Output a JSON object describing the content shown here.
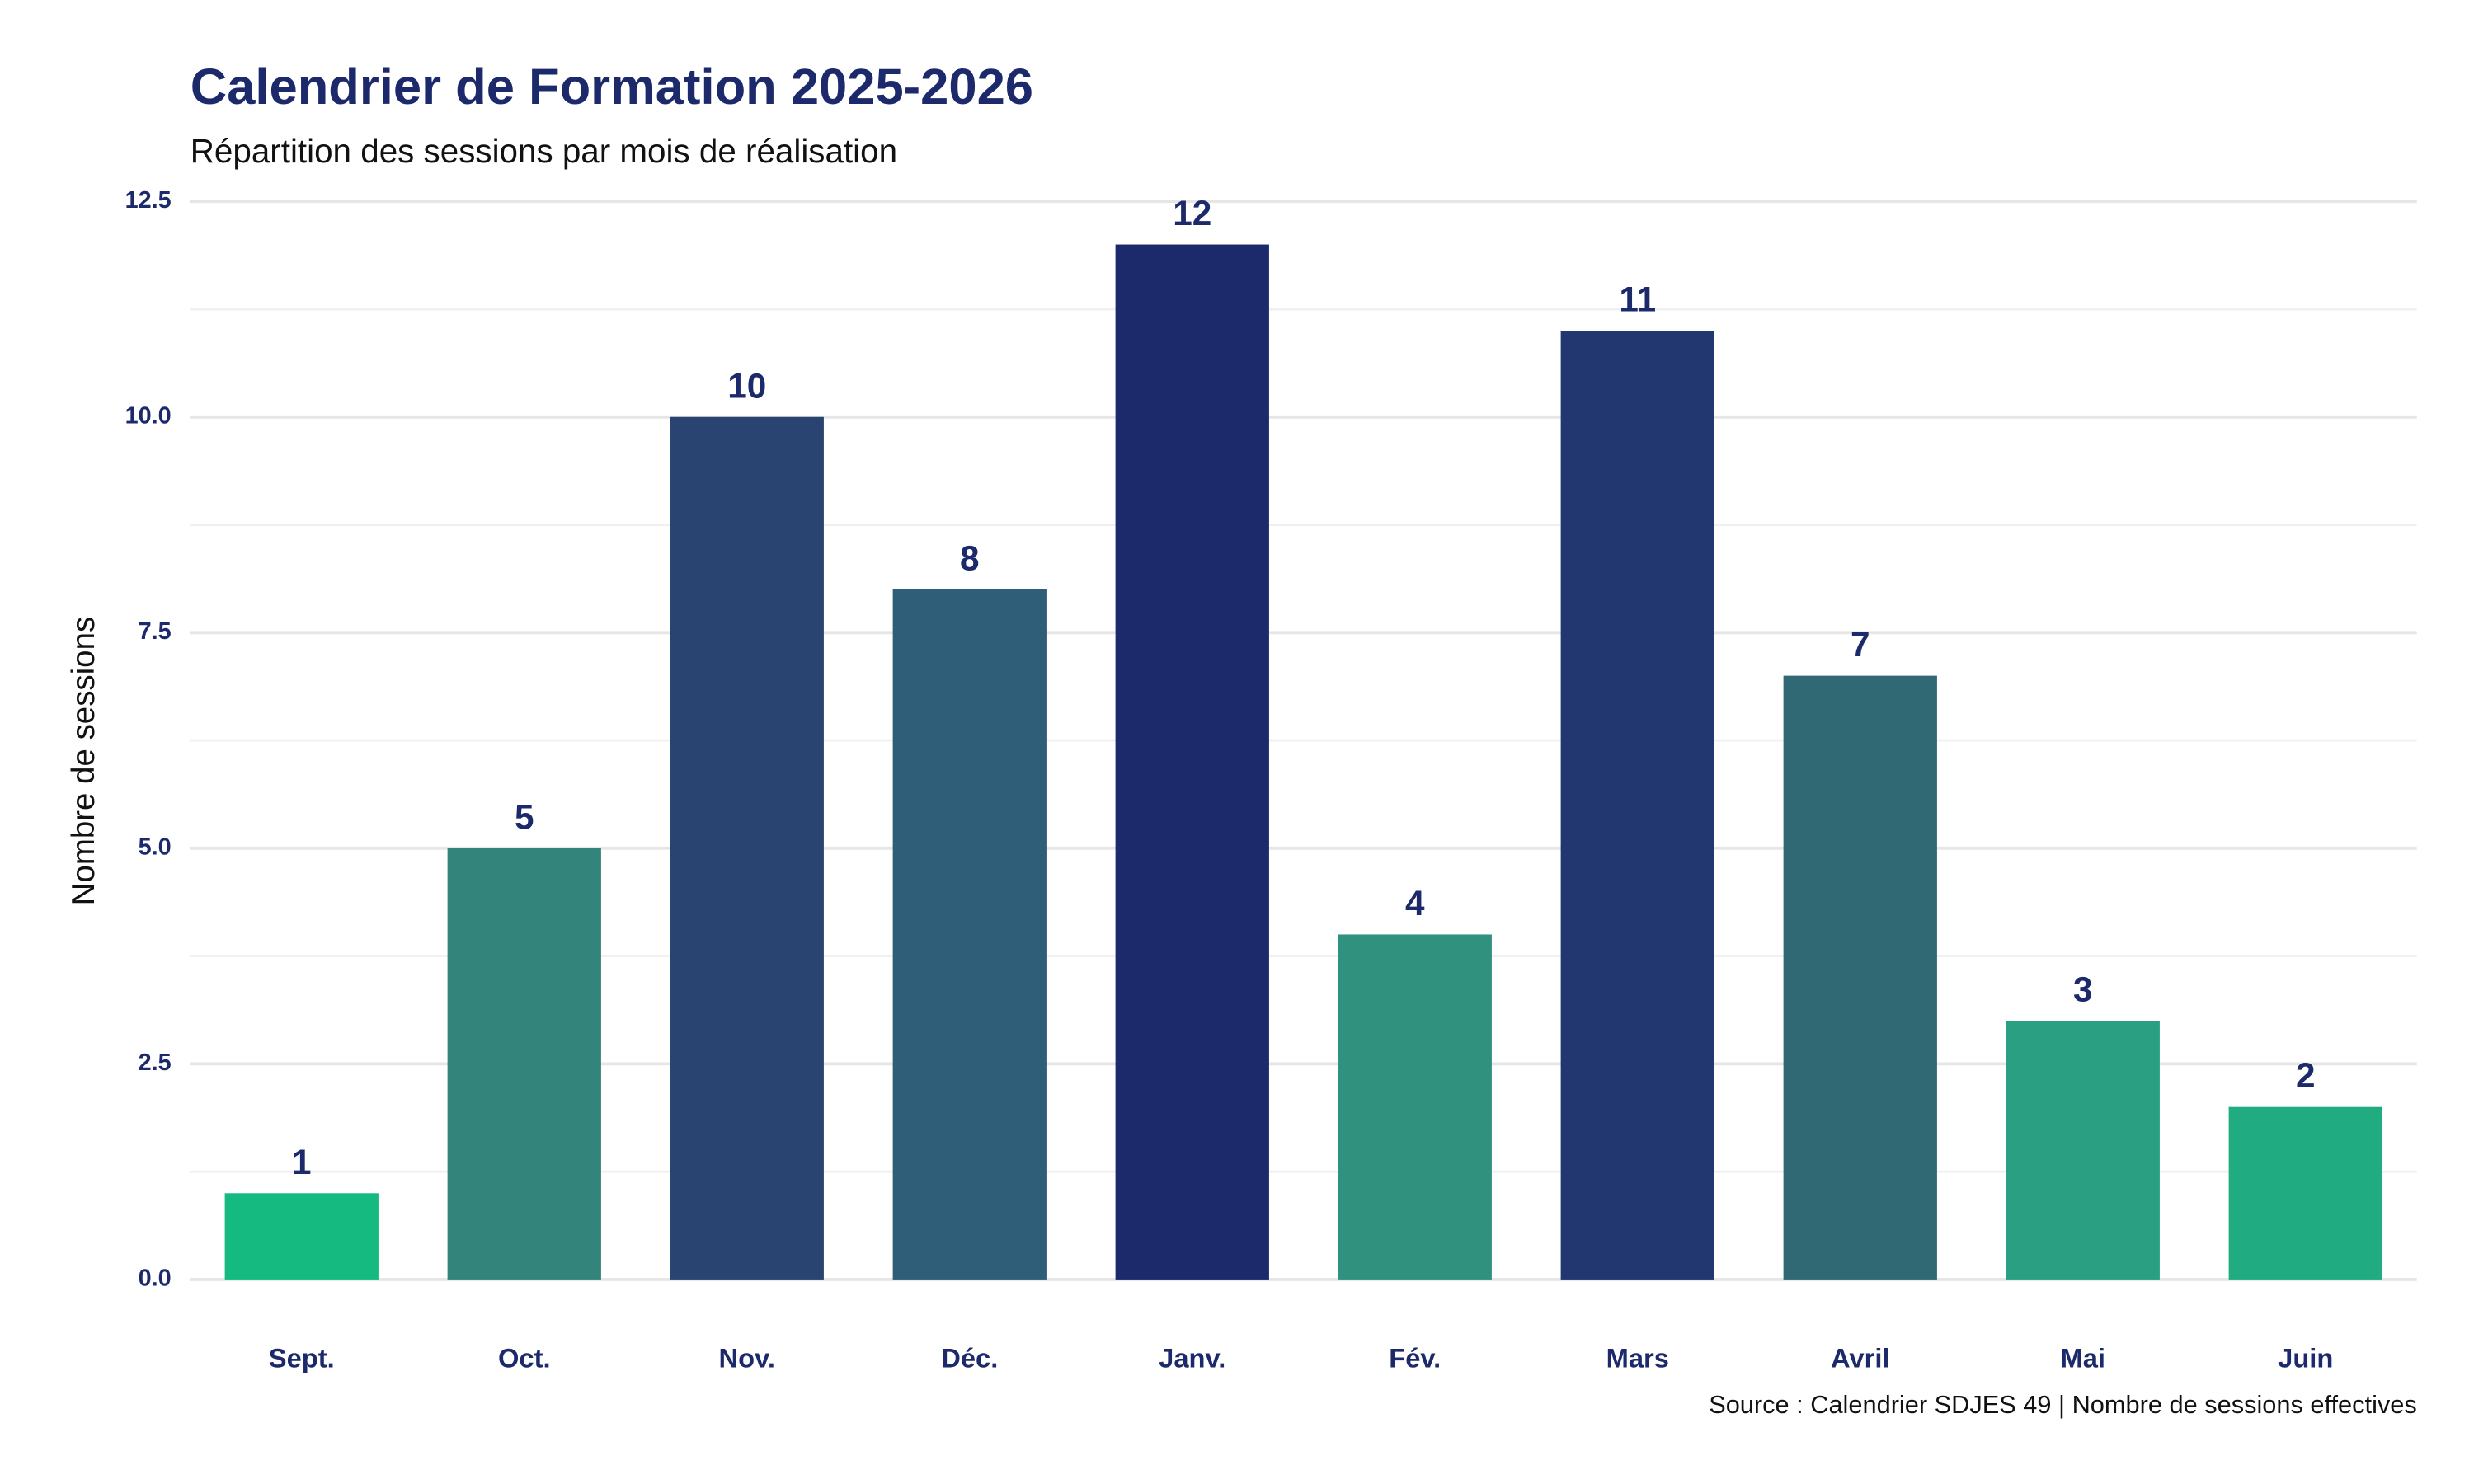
{
  "chart_data": {
    "type": "bar",
    "title": "Calendrier de Formation 2025-2026",
    "subtitle": "Répartition des sessions par mois de réalisation",
    "y_label": "Nombre de sessions",
    "caption": "Source : Calendrier SDJES 49 | Nombre de sessions effectives",
    "categories": [
      "Sept.",
      "Oct.",
      "Nov.",
      "Déc.",
      "Janv.",
      "Fév.",
      "Mars",
      "Avril",
      "Mai",
      "Juin"
    ],
    "values": [
      1,
      5,
      10,
      8,
      12,
      4,
      11,
      7,
      3,
      2
    ],
    "colors": [
      "#14ba80",
      "#33847b",
      "#2a4471",
      "#2f5f78",
      "#1c2a6b",
      "#2f917e",
      "#223670",
      "#306874",
      "#2a9f81",
      "#20ab81"
    ],
    "ylim": [
      0,
      12.5
    ],
    "yticks": [
      {
        "value": 0,
        "label": "0.0"
      },
      2.5,
      {
        "value": 5,
        "label": "5.0"
      },
      7.5,
      {
        "value": 10,
        "label": "10.0"
      },
      12.5
    ],
    "grid": true
  }
}
